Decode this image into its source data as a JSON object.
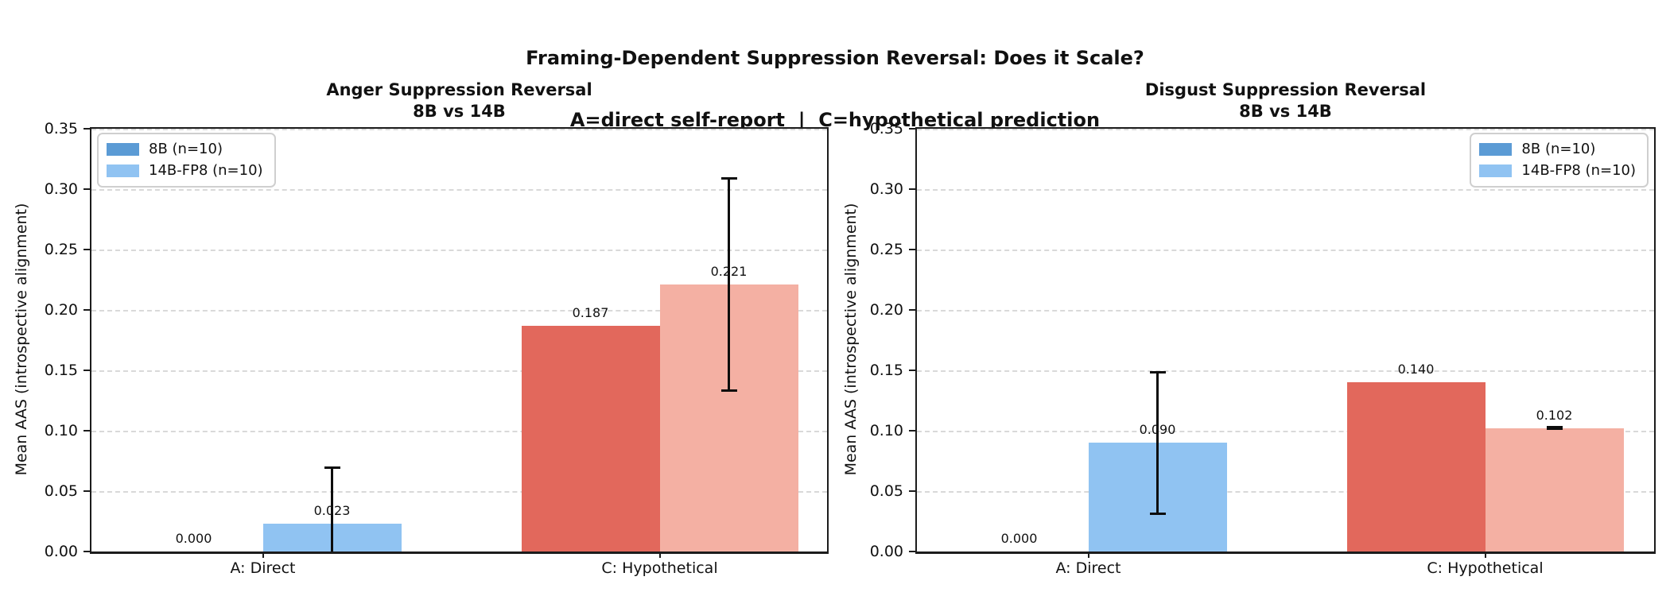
{
  "figure": {
    "suptitle_line1": "Framing-Dependent Suppression Reversal: Does it Scale?",
    "suptitle_line2": "A=direct self-report  |  C=hypothetical prediction",
    "background": "#ffffff"
  },
  "axes": {
    "ylabel": "Mean AAS (introspective alignment)",
    "ylim": [
      0,
      0.35
    ],
    "ytick_labels": [
      "0.00",
      "0.05",
      "0.10",
      "0.15",
      "0.20",
      "0.25",
      "0.30",
      "0.35"
    ],
    "grid": "horizontal dashed",
    "grid_color": "#d9d9d9"
  },
  "legend": {
    "items": [
      {
        "label": "8B (n=10)",
        "color": "#5B9BD5"
      },
      {
        "label": "14B-FP8 (n=10)",
        "color": "#90C3F2"
      }
    ]
  },
  "colors": {
    "blue_dark": "#5B9BD5",
    "blue_light": "#90C3F2",
    "red_dark": "#E2685C",
    "red_light": "#F4B0A3",
    "errorbar": "#0d0d0d",
    "spine": "#1c1c1c"
  },
  "chart_data": [
    {
      "type": "bar",
      "title_lines": [
        "Anger Suppression Reversal",
        "8B vs 14B"
      ],
      "xlabel": "",
      "ylabel": "Mean AAS (introspective alignment)",
      "ylim": [
        0,
        0.35
      ],
      "categories": [
        "A: Direct",
        "C: Hypothetical"
      ],
      "legend_position": "upper-left",
      "series": [
        {
          "name": "8B (n=10)",
          "values": [
            0.0,
            0.187
          ],
          "value_labels": [
            "0.000",
            "0.187"
          ],
          "bar_colors": [
            "#5B9BD5",
            "#E2685C"
          ],
          "error_bars": [
            null,
            null
          ]
        },
        {
          "name": "14B-FP8 (n=10)",
          "values": [
            0.023,
            0.221
          ],
          "value_labels": [
            "0.023",
            "0.221"
          ],
          "bar_colors": [
            "#90C3F2",
            "#F4B0A3"
          ],
          "error_bars": [
            {
              "low": 0.0,
              "high": 0.07,
              "low_cap": false,
              "clipped_at_zero": true
            },
            {
              "low": 0.133,
              "high": 0.309,
              "low_cap": true,
              "clipped_at_zero": false
            }
          ]
        }
      ]
    },
    {
      "type": "bar",
      "title_lines": [
        "Disgust Suppression Reversal",
        "8B vs 14B"
      ],
      "xlabel": "",
      "ylabel": "Mean AAS (introspective alignment)",
      "ylim": [
        0,
        0.35
      ],
      "categories": [
        "A: Direct",
        "C: Hypothetical"
      ],
      "legend_position": "upper-right",
      "series": [
        {
          "name": "8B (n=10)",
          "values": [
            0.0,
            0.14
          ],
          "value_labels": [
            "0.000",
            "0.140"
          ],
          "bar_colors": [
            "#5B9BD5",
            "#E2685C"
          ],
          "error_bars": [
            null,
            null
          ]
        },
        {
          "name": "14B-FP8 (n=10)",
          "values": [
            0.09,
            0.102
          ],
          "value_labels": [
            "0.090",
            "0.102"
          ],
          "bar_colors": [
            "#90C3F2",
            "#F4B0A3"
          ],
          "error_bars": [
            {
              "low": 0.031,
              "high": 0.149,
              "low_cap": true,
              "clipped_at_zero": false
            },
            {
              "low": 0.101,
              "high": 0.103,
              "low_cap": true,
              "clipped_at_zero": false
            }
          ]
        }
      ]
    }
  ]
}
